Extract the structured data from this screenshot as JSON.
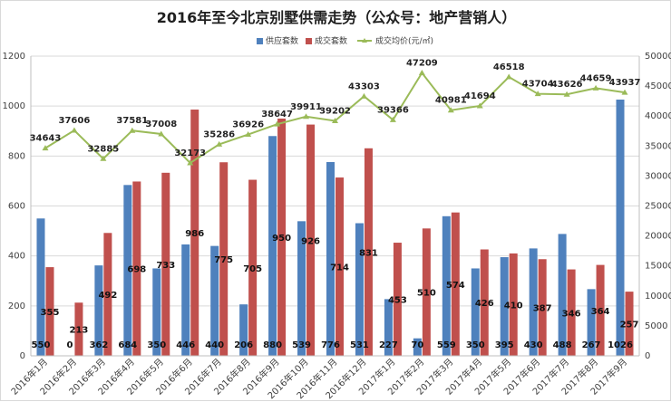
{
  "chart_data": {
    "type": "bar",
    "title": "2016年至今北京别墅供需走势（公众号：地产营销人）",
    "categories": [
      "2016年1月",
      "2016年2月",
      "2016年3月",
      "2016年4月",
      "2016年5月",
      "2016年6月",
      "2016年7月",
      "2016年8月",
      "2016年9月",
      "2016年10月",
      "2016年11月",
      "2016年12月",
      "2017年1月",
      "2017年2月",
      "2017年3月",
      "2017年4月",
      "2017年5月",
      "2017年6月",
      "2017年7月",
      "2017年8月",
      "2017年9月"
    ],
    "series": [
      {
        "name": "供应套数",
        "type": "bar",
        "axis": "left",
        "color": "#4f81bd",
        "values": [
          550,
          0,
          362,
          684,
          350,
          446,
          440,
          206,
          880,
          539,
          776,
          531,
          227,
          70,
          559,
          350,
          395,
          430,
          488,
          267,
          1026
        ]
      },
      {
        "name": "成交套数",
        "type": "bar",
        "axis": "left",
        "color": "#c0504d",
        "values": [
          355,
          213,
          492,
          698,
          733,
          986,
          775,
          705,
          950,
          926,
          714,
          831,
          453,
          510,
          574,
          426,
          410,
          387,
          346,
          364,
          257
        ]
      },
      {
        "name": "成交均价(元/㎡)",
        "type": "line",
        "axis": "right",
        "color": "#9bbb59",
        "values": [
          34643,
          37606,
          32885,
          37581,
          37008,
          32173,
          35286,
          36926,
          38647,
          39911,
          39202,
          43303,
          39366,
          47209,
          40981,
          41694,
          46518,
          43704,
          43626,
          44659,
          43937
        ]
      }
    ],
    "y_left": {
      "min": 0,
      "max": 1200,
      "ticks": [
        0,
        200,
        400,
        600,
        800,
        1000,
        1200
      ]
    },
    "y_right": {
      "min": 0,
      "max": 50000,
      "ticks": [
        0,
        5000,
        10000,
        15000,
        20000,
        25000,
        30000,
        35000,
        40000,
        45000,
        50000
      ]
    },
    "grid": true,
    "legend_position": "top"
  }
}
